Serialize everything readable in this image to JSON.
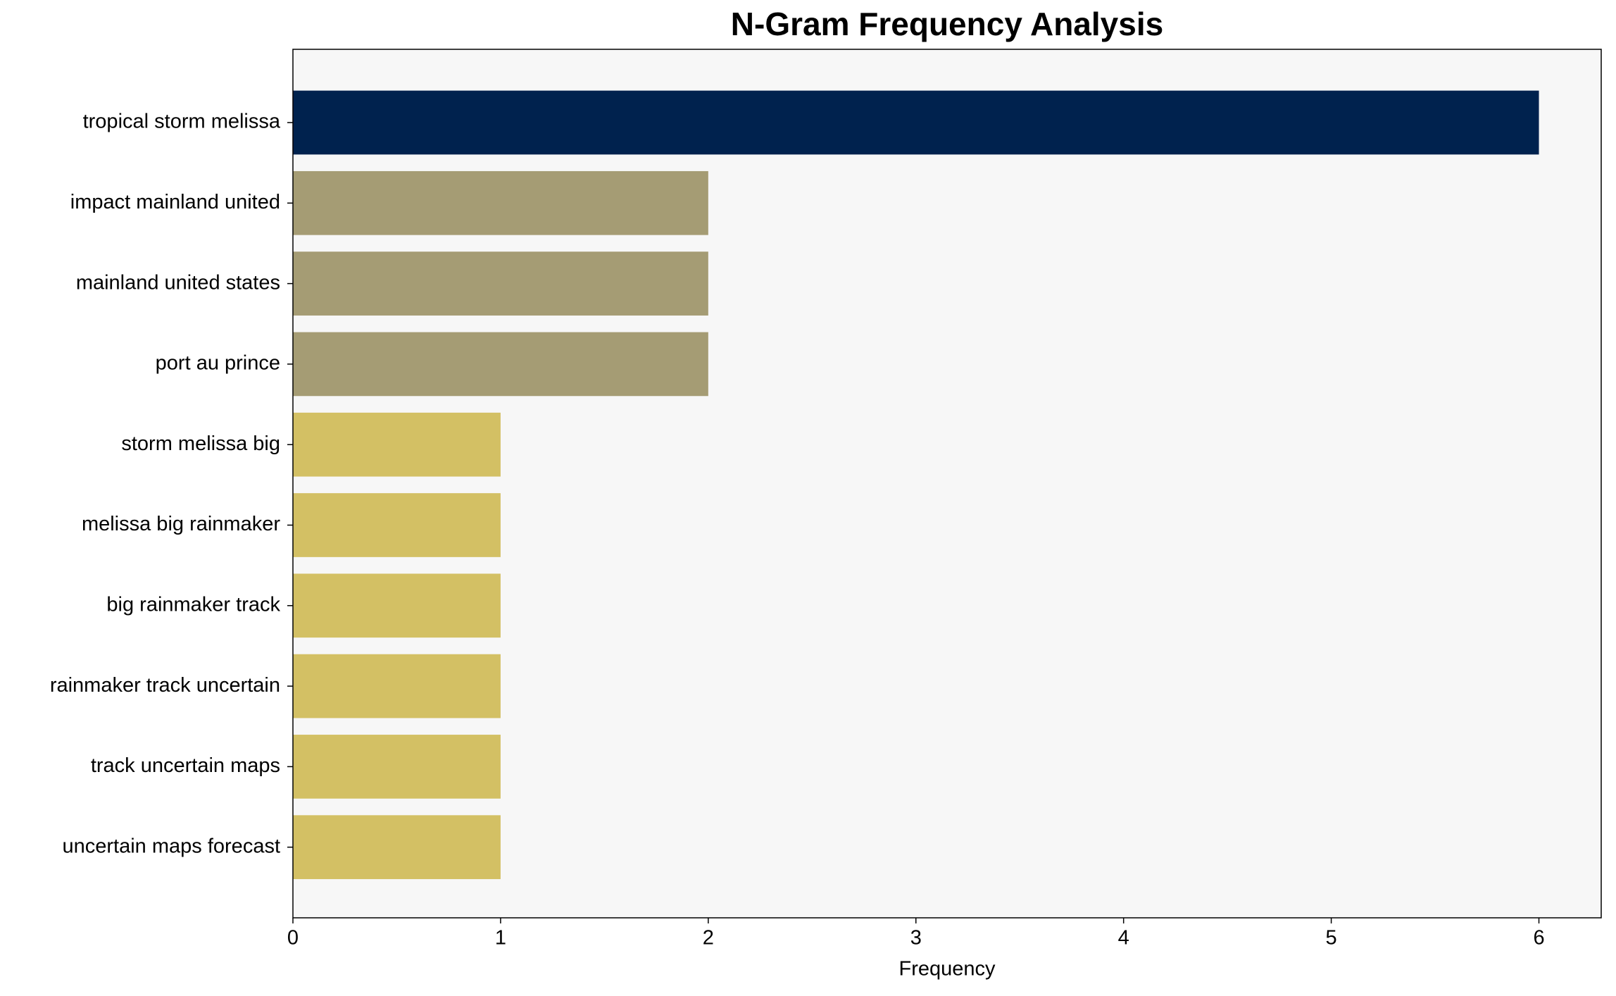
{
  "chart_data": {
    "type": "barh",
    "title": "N-Gram Frequency Analysis",
    "xlabel": "Frequency",
    "categories": [
      "tropical storm melissa",
      "impact mainland united",
      "mainland united states",
      "port au prince",
      "storm melissa big",
      "melissa big rainmaker",
      "big rainmaker track",
      "rainmaker track uncertain",
      "track uncertain maps",
      "uncertain maps forecast"
    ],
    "values": [
      6,
      2,
      2,
      2,
      1,
      1,
      1,
      1,
      1,
      1
    ],
    "colors": [
      "#00224e",
      "#a59c74",
      "#a59c74",
      "#a59c74",
      "#d3c064",
      "#d3c064",
      "#d3c064",
      "#d3c064",
      "#d3c064",
      "#d3c064"
    ],
    "xlim": [
      0,
      6.3
    ],
    "xticks": [
      0,
      1,
      2,
      3,
      4,
      5,
      6
    ]
  }
}
